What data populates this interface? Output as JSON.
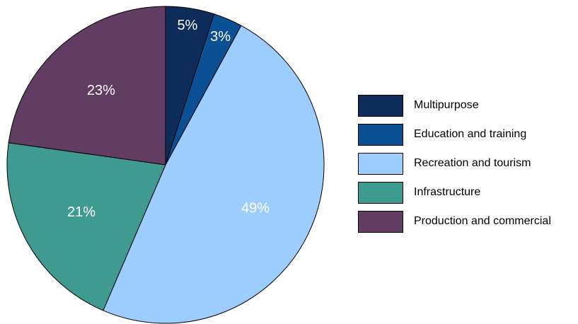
{
  "chart_data": {
    "type": "pie",
    "title": "",
    "start_angle": "12 o'clock, clockwise",
    "slices": [
      {
        "name": "Multipurpose",
        "value": 5,
        "label": "5%",
        "color": "#0d2c5a"
      },
      {
        "name": "Education and training",
        "value": 3,
        "label": "3%",
        "color": "#0b4f94"
      },
      {
        "name": "Recreation and tourism",
        "value": 49,
        "label": "49%",
        "color": "#9dcdff"
      },
      {
        "name": "Infrastructure",
        "value": 21,
        "label": "21%",
        "color": "#3f9a90"
      },
      {
        "name": "Production and commercial",
        "value": 23,
        "label": "23%",
        "color": "#623d63"
      }
    ],
    "legend_position": "right"
  }
}
